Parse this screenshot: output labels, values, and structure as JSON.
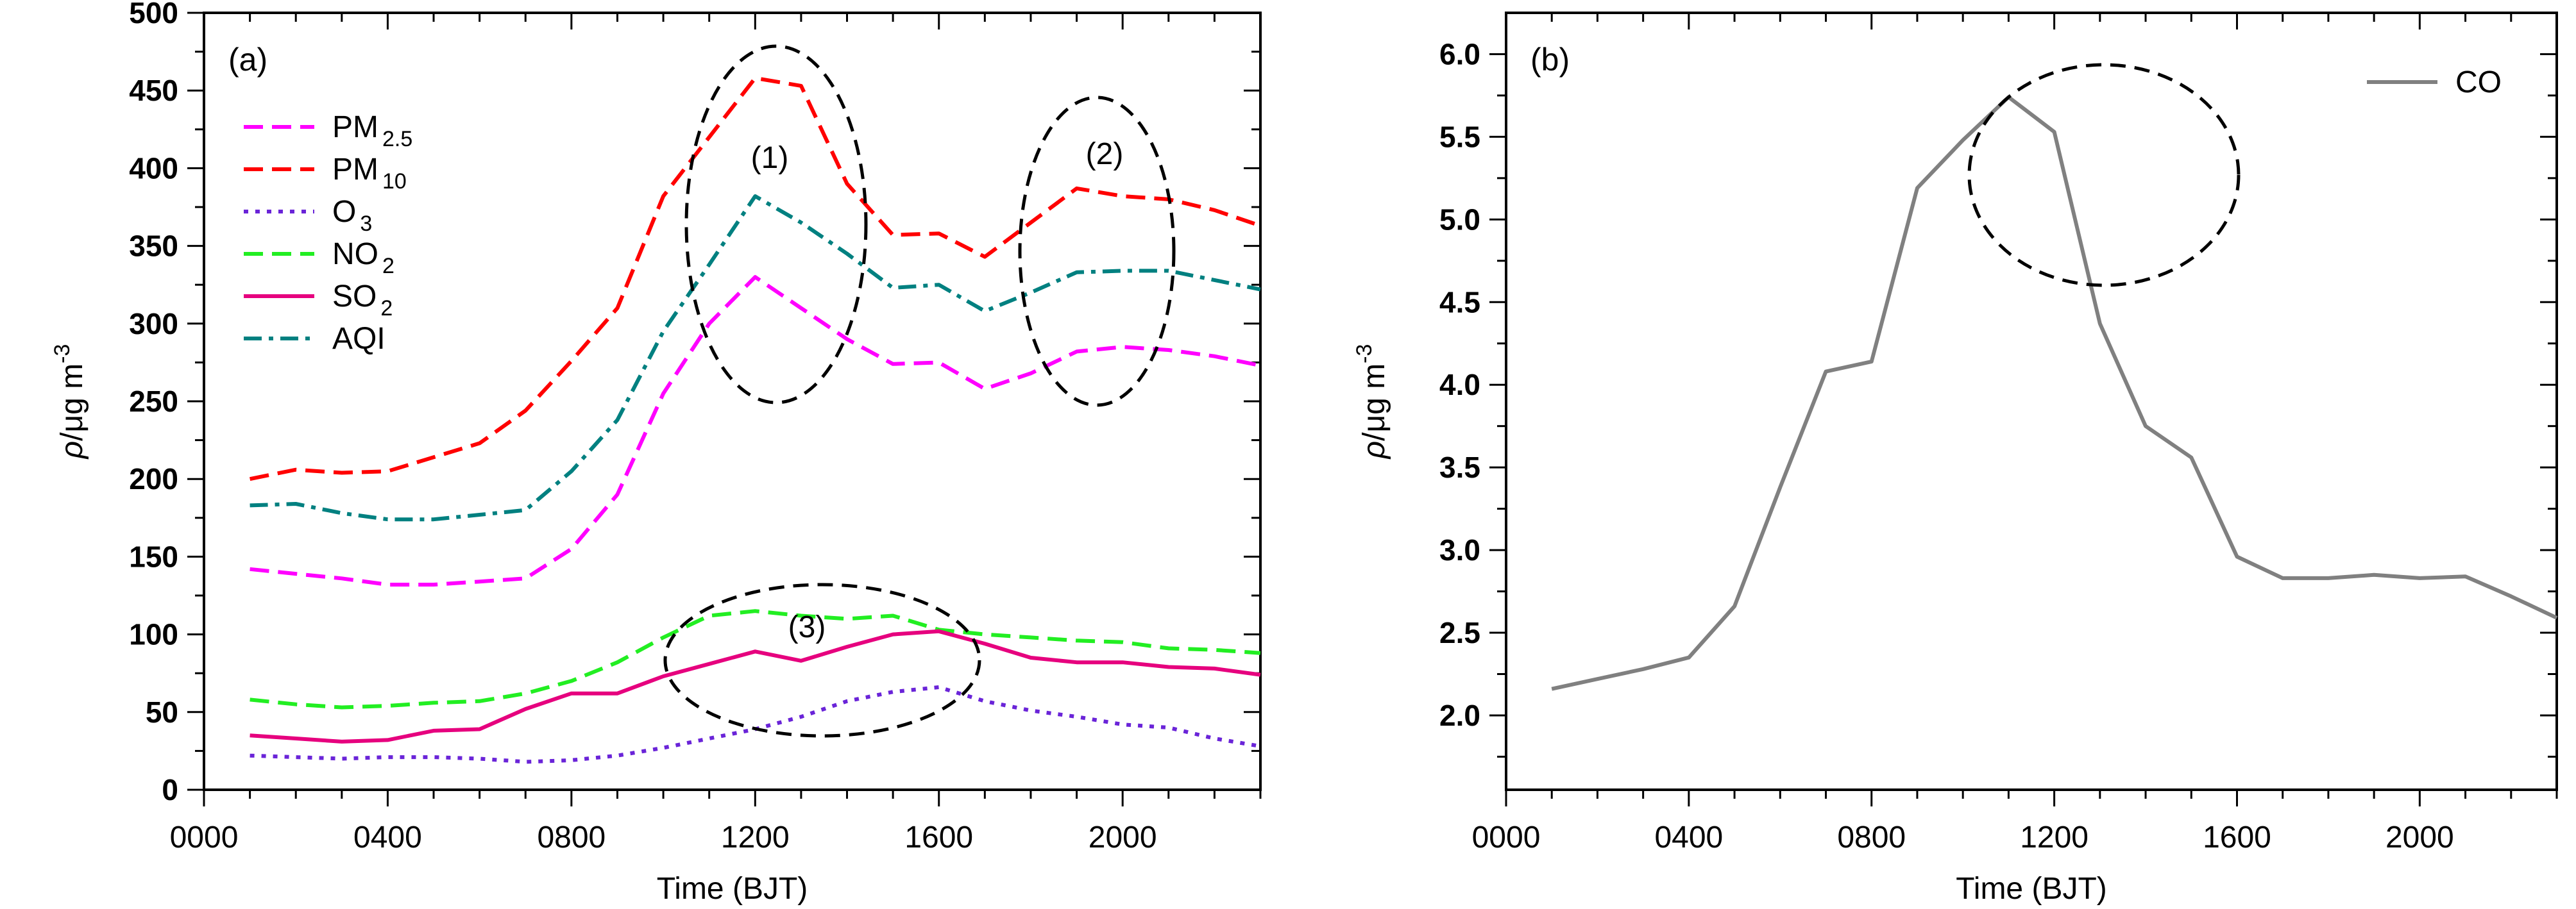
{
  "chart_data": [
    {
      "panel_label": "(a)",
      "type": "line",
      "xlabel": "Time (BJT)",
      "ylabel_parts": {
        "rho": "ρ",
        "unit": "/μg m",
        "exp": "-3"
      },
      "xlim": [
        0,
        23
      ],
      "ylim": [
        0,
        500
      ],
      "x_ticks": [
        0,
        4,
        8,
        12,
        16,
        20
      ],
      "x_tick_labels": [
        "0000",
        "0400",
        "0800",
        "1200",
        "1600",
        "2000"
      ],
      "y_ticks": [
        0,
        50,
        100,
        150,
        200,
        250,
        300,
        350,
        400,
        450,
        500
      ],
      "y_tick_labels": [
        "0",
        "50",
        "100",
        "150",
        "200",
        "250",
        "300",
        "350",
        "400",
        "450",
        "500"
      ],
      "x": [
        1,
        2,
        3,
        4,
        5,
        6,
        7,
        8,
        9,
        10,
        11,
        12,
        13,
        14,
        15,
        16,
        17,
        18,
        19,
        20,
        21,
        22,
        23
      ],
      "legend_position": "upper-left",
      "series": [
        {
          "key": "pm25",
          "name_main": "PM",
          "name_sub": "2.5",
          "color": "#ff00ff",
          "dash": "dash",
          "values": [
            142,
            139,
            136,
            132,
            132,
            134,
            136,
            155,
            190,
            255,
            300,
            330,
            310,
            290,
            274,
            275,
            258,
            268,
            282,
            285,
            283,
            279,
            273
          ]
        },
        {
          "key": "pm10",
          "name_main": "PM",
          "name_sub": "10",
          "color": "#ff0000",
          "dash": "dash",
          "values": [
            200,
            206,
            204,
            205,
            214,
            223,
            244,
            276,
            310,
            382,
            420,
            458,
            453,
            390,
            357,
            358,
            343,
            365,
            387,
            382,
            380,
            373,
            363
          ]
        },
        {
          "key": "o3",
          "name_main": "O",
          "name_sub": "3",
          "color": "#6a24d8",
          "dash": "dot",
          "values": [
            22,
            21,
            20,
            21,
            21,
            20,
            18,
            19,
            22,
            27,
            33,
            39,
            47,
            57,
            63,
            66,
            57,
            51,
            47,
            42,
            40,
            33,
            28
          ]
        },
        {
          "key": "no2",
          "name_main": "NO",
          "name_sub": "2",
          "color": "#22ee22",
          "dash": "dash",
          "values": [
            58,
            55,
            53,
            54,
            56,
            57,
            62,
            70,
            82,
            98,
            112,
            115,
            112,
            110,
            112,
            103,
            100,
            98,
            96,
            95,
            91,
            90,
            88
          ]
        },
        {
          "key": "so2",
          "name_main": "SO",
          "name_sub": "2",
          "color": "#e6007e",
          "dash": "solid",
          "values": [
            35,
            33,
            31,
            32,
            38,
            39,
            52,
            62,
            62,
            73,
            81,
            89,
            83,
            92,
            100,
            102,
            94,
            85,
            82,
            82,
            79,
            78,
            74
          ]
        },
        {
          "key": "aqi",
          "name_main": "AQI",
          "name_sub": "",
          "color": "#008080",
          "dash": "dashdot",
          "values": [
            183,
            184,
            178,
            174,
            174,
            177,
            180,
            205,
            238,
            295,
            338,
            382,
            365,
            345,
            323,
            325,
            308,
            320,
            333,
            334,
            334,
            328,
            322
          ]
        }
      ],
      "annotations": [
        "(1)",
        "(2)",
        "(3)"
      ]
    },
    {
      "panel_label": "(b)",
      "type": "line",
      "xlabel": "Time (BJT)",
      "ylabel_parts": {
        "rho": "ρ",
        "unit": "/μg m",
        "exp": "-3"
      },
      "xlim": [
        0,
        23
      ],
      "ylim": [
        1.55,
        6.25
      ],
      "x_ticks": [
        0,
        4,
        8,
        12,
        16,
        20
      ],
      "x_tick_labels": [
        "0000",
        "0400",
        "0800",
        "1200",
        "1600",
        "2000"
      ],
      "y_ticks": [
        2.0,
        2.5,
        3.0,
        3.5,
        4.0,
        4.5,
        5.0,
        5.5,
        6.0
      ],
      "y_tick_labels": [
        "2.0",
        "2.5",
        "3.0",
        "3.5",
        "4.0",
        "4.5",
        "5.0",
        "5.5",
        "6.0"
      ],
      "x": [
        1,
        2,
        3,
        4,
        5,
        6,
        7,
        8,
        9,
        10,
        11,
        12,
        13,
        14,
        15,
        16,
        17,
        18,
        19,
        20,
        21,
        22,
        23
      ],
      "legend_position": "top-right",
      "series": [
        {
          "key": "co",
          "name_main": "CO",
          "name_sub": "",
          "color": "#808080",
          "dash": "solid",
          "values": [
            2.16,
            2.22,
            2.28,
            2.35,
            2.66,
            3.38,
            4.08,
            4.14,
            5.19,
            5.48,
            5.74,
            5.53,
            4.37,
            3.75,
            3.56,
            2.96,
            2.83,
            2.83,
            2.85,
            2.83,
            2.84,
            2.72,
            2.59
          ]
        }
      ],
      "annotations": []
    }
  ]
}
